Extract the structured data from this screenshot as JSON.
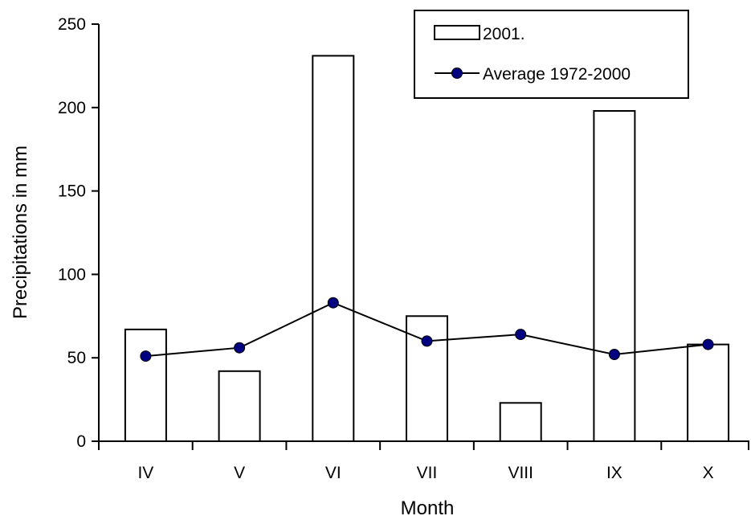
{
  "chart_data": {
    "type": "bar",
    "categories": [
      "IV",
      "V",
      "VI",
      "VII",
      "VIII",
      "IX",
      "X"
    ],
    "series": [
      {
        "name": "2001.",
        "type": "bar",
        "values": [
          67,
          42,
          231,
          75,
          23,
          198,
          58
        ],
        "color": "#ffffff"
      },
      {
        "name": "Average 1972-2000",
        "type": "line",
        "values": [
          51,
          56,
          83,
          60,
          64,
          52,
          58
        ],
        "color": "#000080"
      }
    ],
    "xlabel": "Month",
    "ylabel": "Precipitations in mm",
    "ylim": [
      0,
      250
    ],
    "yticks": [
      0,
      50,
      100,
      150,
      200,
      250
    ],
    "grid": false,
    "legend_position": "top-right"
  }
}
